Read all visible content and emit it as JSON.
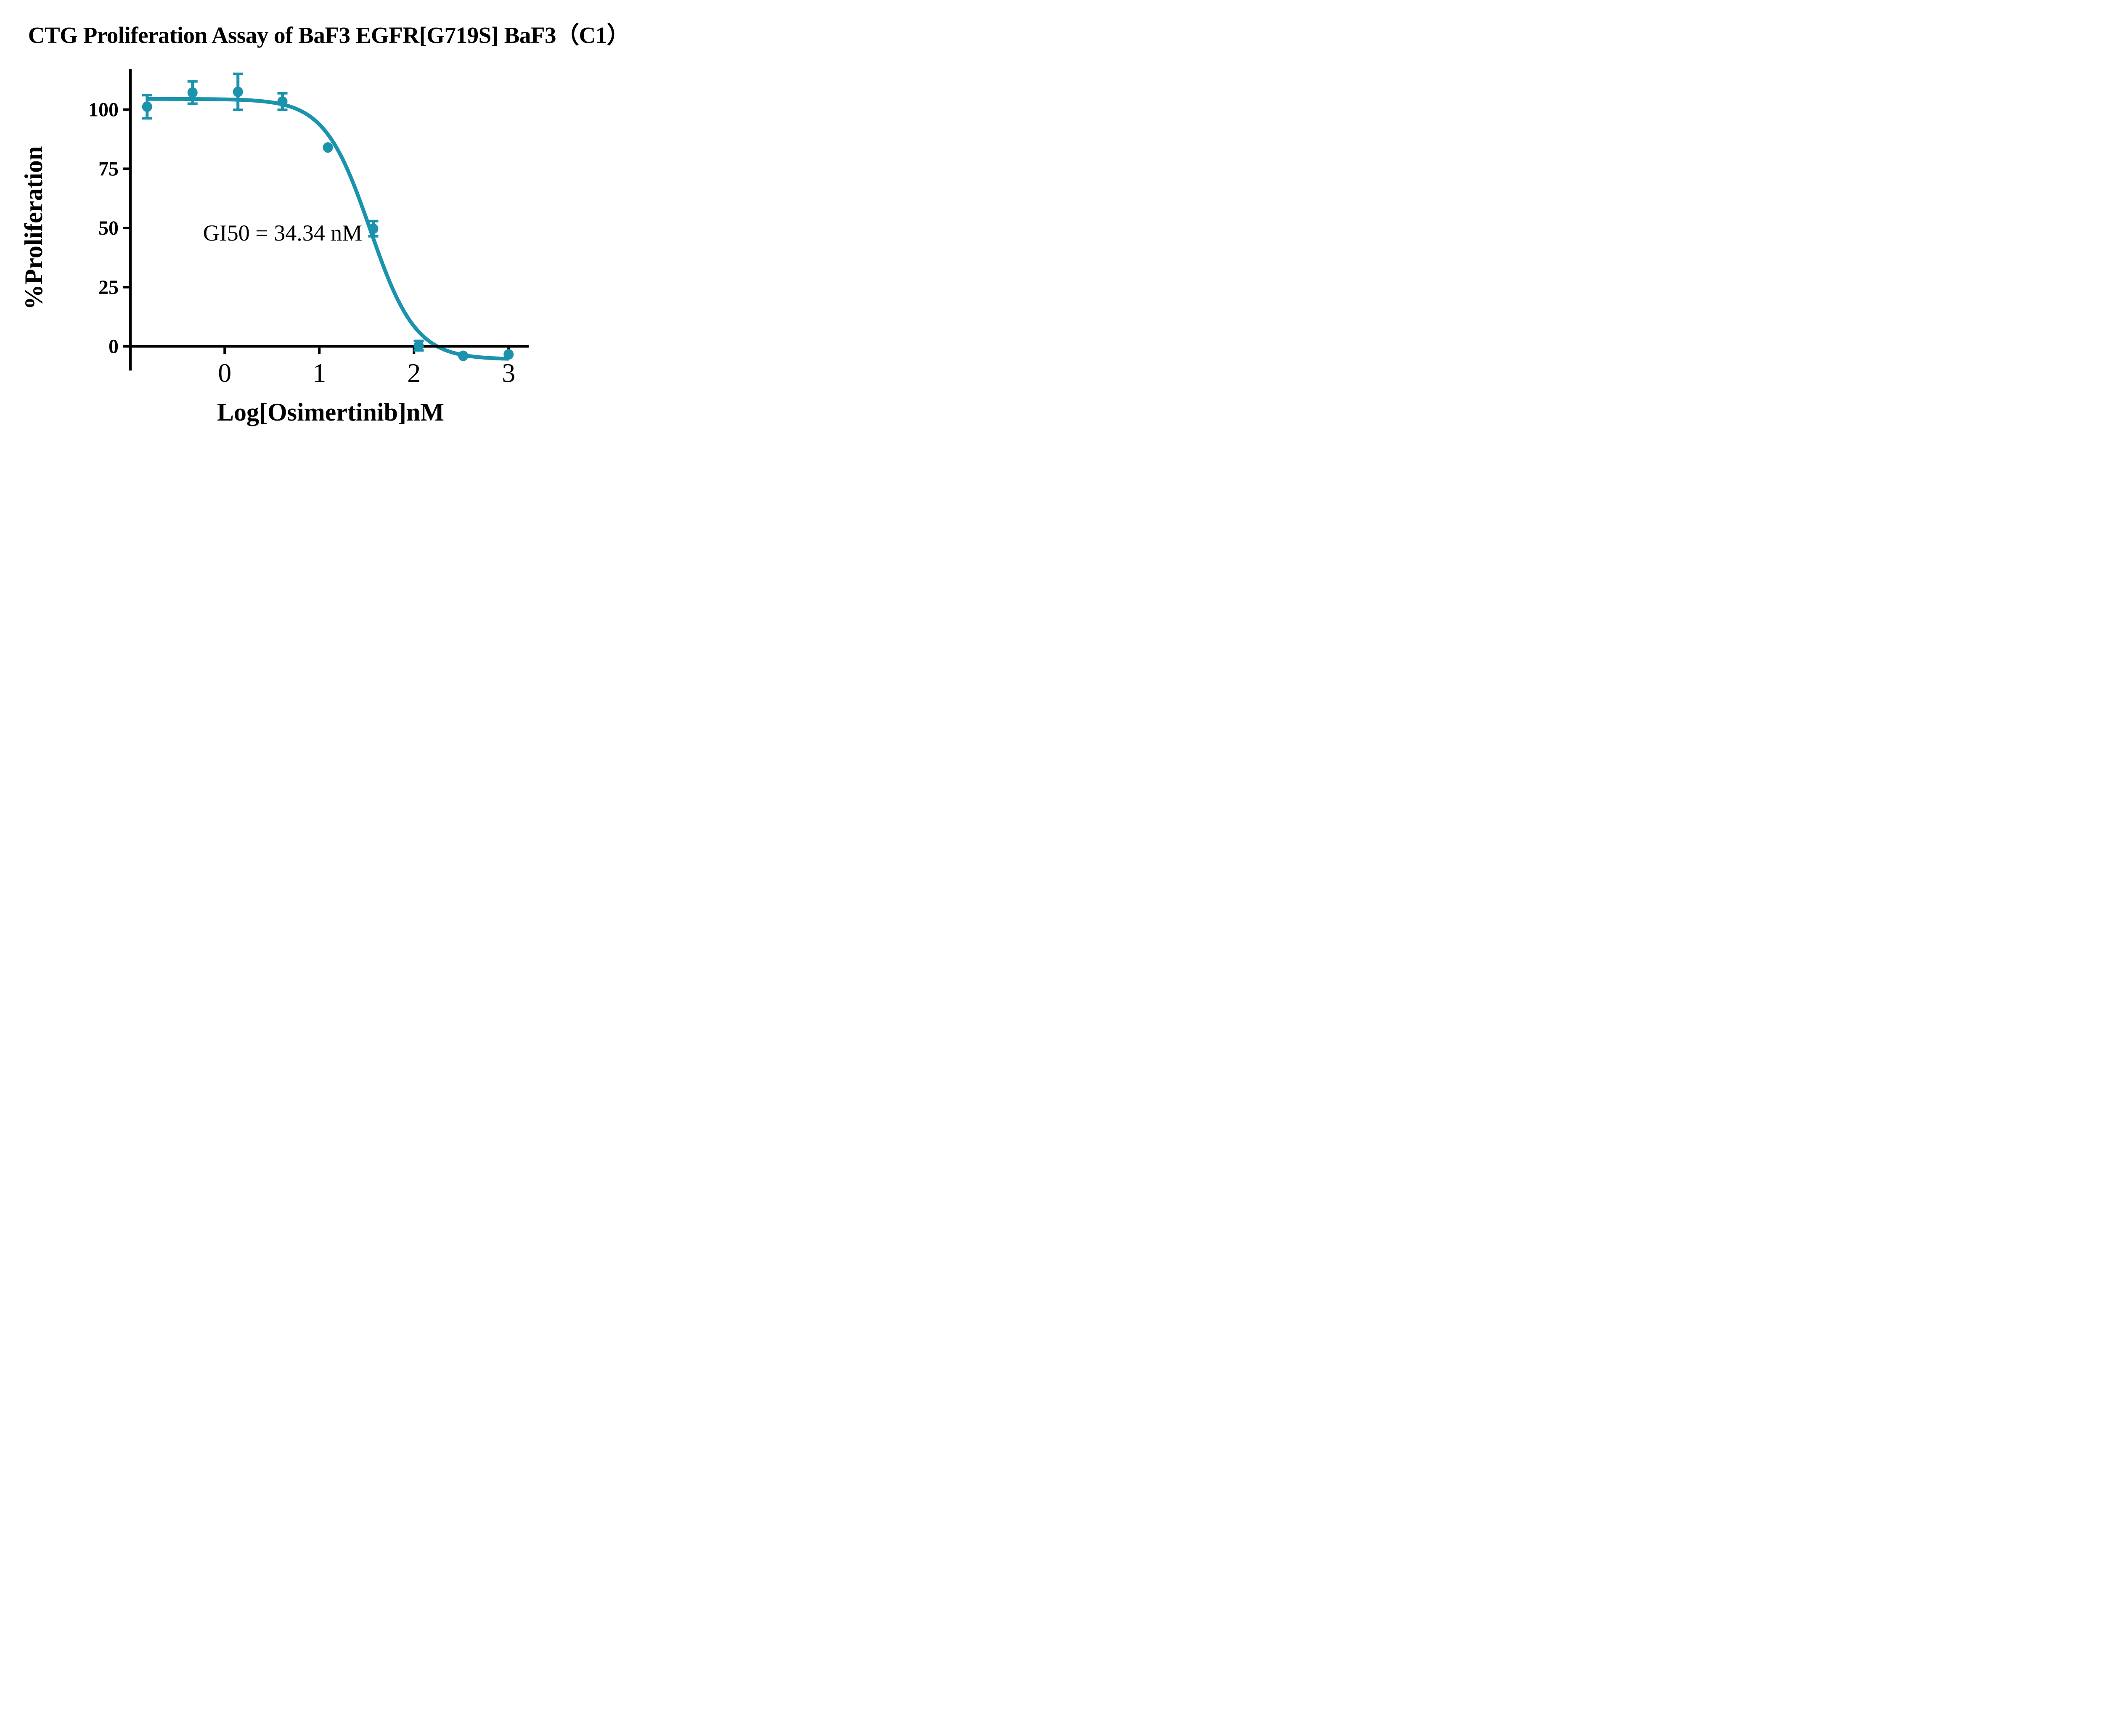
{
  "title": "CTG Proliferation Assay of BaF3 EGFR[G719S] BaF3（C1）",
  "annotation": {
    "text": "GI50 = 34.34 nM"
  },
  "colors": {
    "series": "#1B93AD",
    "axis": "#000000",
    "text": "#000000",
    "background": "#FFFFFF"
  },
  "chart_data": {
    "type": "scatter",
    "title": "CTG Proliferation Assay of BaF3 EGFR[G719S] BaF3（C1）",
    "xlabel": "Log[Osimertinib]nM",
    "ylabel": "%Proliferation",
    "xlim": [
      -1.01,
      3.21
    ],
    "ylim": [
      -10,
      117
    ],
    "grid": false,
    "legend_position": "none",
    "x_ticks": [
      0,
      1,
      2,
      3
    ],
    "y_ticks": [
      0,
      25,
      50,
      75,
      100
    ],
    "gi50_nM": 34.34,
    "series": [
      {
        "name": "BaF3 EGFR[G719S] BaF3 (C1)",
        "color": "#1B93AD",
        "points": [
          {
            "x": -0.82,
            "y": 101.2,
            "err": 4.9
          },
          {
            "x": -0.34,
            "y": 107.2,
            "err": 4.7
          },
          {
            "x": 0.14,
            "y": 107.5,
            "err": 7.6
          },
          {
            "x": 0.61,
            "y": 103.4,
            "err": 3.5
          },
          {
            "x": 1.09,
            "y": 84.0,
            "err": 0
          },
          {
            "x": 1.57,
            "y": 49.7,
            "err": 3.2
          },
          {
            "x": 2.05,
            "y": 0.3,
            "err": 2.0
          },
          {
            "x": 2.52,
            "y": -4.0,
            "err": 0
          },
          {
            "x": 3.0,
            "y": -3.4,
            "err": 0
          }
        ]
      }
    ],
    "fit_curve": {
      "model": "4PL",
      "top": 104.5,
      "bottom": -5.5,
      "log_ic50": 1.536,
      "hill_slope": 1.8,
      "x_start": -0.82,
      "x_end": 3.0
    }
  }
}
